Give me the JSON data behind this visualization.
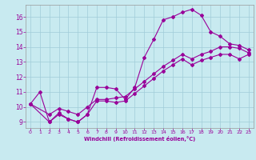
{
  "xlabel": "Windchill (Refroidissement éolien,°C)",
  "xlim": [
    -0.5,
    23.5
  ],
  "ylim": [
    8.6,
    16.8
  ],
  "yticks": [
    9,
    10,
    11,
    12,
    13,
    14,
    15,
    16
  ],
  "xticks": [
    0,
    1,
    2,
    3,
    4,
    5,
    6,
    7,
    8,
    9,
    10,
    11,
    12,
    13,
    14,
    15,
    16,
    17,
    18,
    19,
    20,
    21,
    22,
    23
  ],
  "bg_color": "#c8eaf0",
  "grid_color": "#a0ccd8",
  "line_color": "#990099",
  "curve1_x": [
    0,
    1,
    2,
    3,
    4,
    5,
    6,
    7,
    8,
    9,
    10,
    11,
    12,
    13,
    14,
    15,
    16,
    17,
    18,
    19,
    20,
    21,
    22,
    23
  ],
  "curve1_y": [
    10.2,
    11.0,
    9.0,
    9.6,
    9.2,
    9.0,
    9.5,
    11.3,
    11.3,
    11.2,
    10.5,
    11.3,
    13.3,
    14.5,
    15.8,
    16.0,
    16.3,
    16.5,
    16.1,
    15.0,
    14.7,
    14.2,
    14.1,
    13.8
  ],
  "curve2_x": [
    0,
    2,
    3,
    4,
    5,
    6,
    7,
    8,
    9,
    10,
    11,
    12,
    13,
    14,
    15,
    16,
    17,
    18,
    19,
    20,
    21,
    22,
    23
  ],
  "curve2_y": [
    10.2,
    9.5,
    9.9,
    9.7,
    9.5,
    10.0,
    10.5,
    10.5,
    10.6,
    10.7,
    11.2,
    11.7,
    12.2,
    12.7,
    13.1,
    13.5,
    13.2,
    13.5,
    13.7,
    14.0,
    14.0,
    13.9,
    13.6
  ],
  "curve3_x": [
    0,
    2,
    3,
    4,
    5,
    6,
    7,
    8,
    9,
    10,
    11,
    12,
    13,
    14,
    15,
    16,
    17,
    18,
    19,
    20,
    21,
    22,
    23
  ],
  "curve3_y": [
    10.2,
    9.0,
    9.5,
    9.2,
    9.0,
    9.5,
    10.4,
    10.4,
    10.3,
    10.4,
    10.9,
    11.4,
    11.9,
    12.4,
    12.8,
    13.2,
    12.8,
    13.1,
    13.3,
    13.5,
    13.5,
    13.2,
    13.5
  ]
}
